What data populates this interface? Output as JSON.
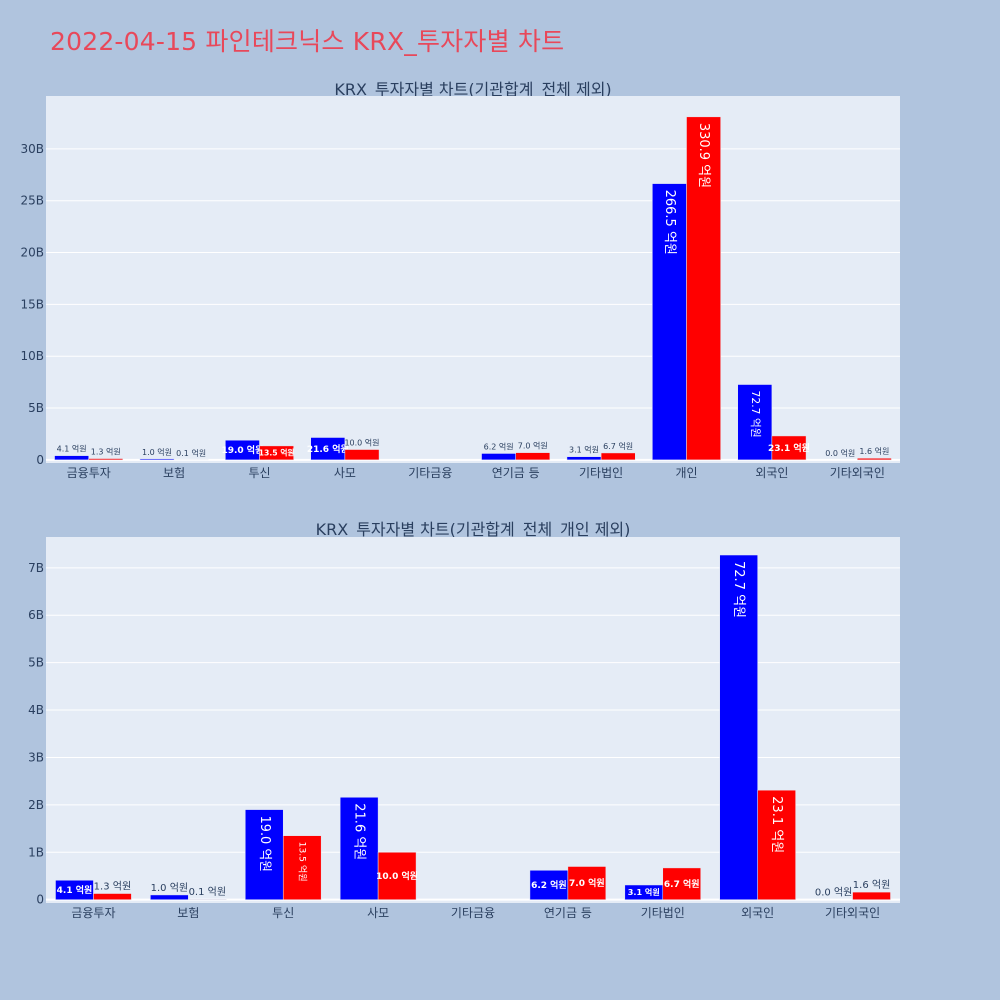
{
  "page": {
    "title": "2022-04-15 파인테크닉스 KRX_투자자별 차트"
  },
  "colors": {
    "background": "#b0c4de",
    "plot_bg": "#e5ecf6",
    "buy": "#0000ff",
    "sell": "#ff0000",
    "title": "#e8485a"
  },
  "chart_data": [
    {
      "type": "bar",
      "title": "KRX_투자자별 차트(기관합계_전체 제외)",
      "categories": [
        "금융투자",
        "보험",
        "투신",
        "사모",
        "기타금융",
        "연기금 등",
        "기타법인",
        "개인",
        "외국인",
        "기타외국인"
      ],
      "series": [
        {
          "color": "#0000ff",
          "values": [
            0.41,
            0.1,
            1.9,
            2.16,
            0,
            0.62,
            0.31,
            26.65,
            7.27,
            0.0
          ],
          "labels": [
            "4.1 억원",
            "1.0 억원",
            "19.0 억원",
            "21.6 억원",
            "",
            "6.2 억원",
            "3.1 억원",
            "266.5 억원",
            "72.7 억원",
            "0.0 억원"
          ]
        },
        {
          "color": "#ff0000",
          "values": [
            0.13,
            0.01,
            1.35,
            1.0,
            0,
            0.7,
            0.67,
            33.09,
            2.31,
            0.16
          ],
          "labels": [
            "1.3 억원",
            "0.1 억원",
            "13.5 억원",
            "10.0 억원",
            "",
            "7.0 억원",
            "6.7 억원",
            "330.9 억원",
            "23.1 억원",
            "1.6 억원"
          ]
        }
      ],
      "yticks": [
        0,
        5,
        10,
        15,
        20,
        25,
        30
      ],
      "ytick_labels": [
        "0",
        "5B",
        "10B",
        "15B",
        "20B",
        "25B",
        "30B"
      ],
      "ylim": [
        -0.3,
        35.1
      ],
      "grid": true
    },
    {
      "type": "bar",
      "title": "KRX_투자자별 차트(기관합계_전체_개인 제외)",
      "categories": [
        "금융투자",
        "보험",
        "투신",
        "사모",
        "기타금융",
        "연기금 등",
        "기타법인",
        "외국인",
        "기타외국인"
      ],
      "series": [
        {
          "color": "#0000ff",
          "values": [
            0.41,
            0.1,
            1.9,
            2.16,
            0,
            0.62,
            0.31,
            7.27,
            0.0
          ],
          "labels": [
            "4.1 억원",
            "1.0 억원",
            "19.0 억원",
            "21.6 억원",
            "",
            "6.2 억원",
            "3.1 억원",
            "72.7 억원",
            "0.0 억원"
          ]
        },
        {
          "color": "#ff0000",
          "values": [
            0.13,
            0.01,
            1.35,
            1.0,
            0,
            0.7,
            0.67,
            2.31,
            0.16
          ],
          "labels": [
            "1.3 억원",
            "0.1 억원",
            "13.5 억원",
            "10.0 억원",
            "",
            "7.0 억원",
            "6.7 억원",
            "23.1 억원",
            "1.6 억원"
          ]
        }
      ],
      "yticks": [
        0,
        1,
        2,
        3,
        4,
        5,
        6,
        7
      ],
      "ytick_labels": [
        "0",
        "1B",
        "2B",
        "3B",
        "4B",
        "5B",
        "6B",
        "7B"
      ],
      "ylim": [
        -0.07,
        7.65
      ],
      "grid": true
    }
  ]
}
